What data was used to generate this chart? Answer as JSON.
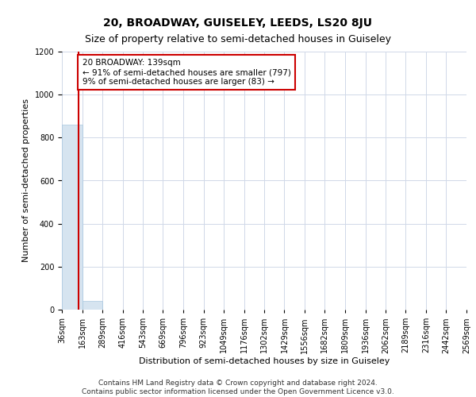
{
  "title": "20, BROADWAY, GUISELEY, LEEDS, LS20 8JU",
  "subtitle": "Size of property relative to semi-detached houses in Guiseley",
  "xlabel": "Distribution of semi-detached houses by size in Guiseley",
  "ylabel": "Number of semi-detached properties",
  "bin_edges": [
    36,
    163,
    289,
    416,
    543,
    669,
    796,
    923,
    1049,
    1176,
    1302,
    1429,
    1556,
    1682,
    1809,
    1936,
    2062,
    2189,
    2316,
    2442,
    2569
  ],
  "bar_heights": [
    860,
    40,
    0,
    0,
    0,
    0,
    0,
    0,
    0,
    0,
    0,
    0,
    0,
    0,
    0,
    0,
    0,
    0,
    0,
    0
  ],
  "bar_color": "#d6e4f0",
  "bar_edge_color": "#a8c8e0",
  "property_value": 139,
  "property_line_color": "#cc0000",
  "annotation_text": "20 BROADWAY: 139sqm\n← 91% of semi-detached houses are smaller (797)\n9% of semi-detached houses are larger (83) →",
  "annotation_box_color": "white",
  "annotation_box_edge_color": "#cc0000",
  "ylim": [
    0,
    1200
  ],
  "yticks": [
    0,
    200,
    400,
    600,
    800,
    1000,
    1200
  ],
  "grid_color": "#d0d8e8",
  "footer": "Contains HM Land Registry data © Crown copyright and database right 2024.\nContains public sector information licensed under the Open Government Licence v3.0.",
  "title_fontsize": 10,
  "subtitle_fontsize": 9,
  "axis_label_fontsize": 8,
  "tick_fontsize": 7,
  "footer_fontsize": 6.5
}
